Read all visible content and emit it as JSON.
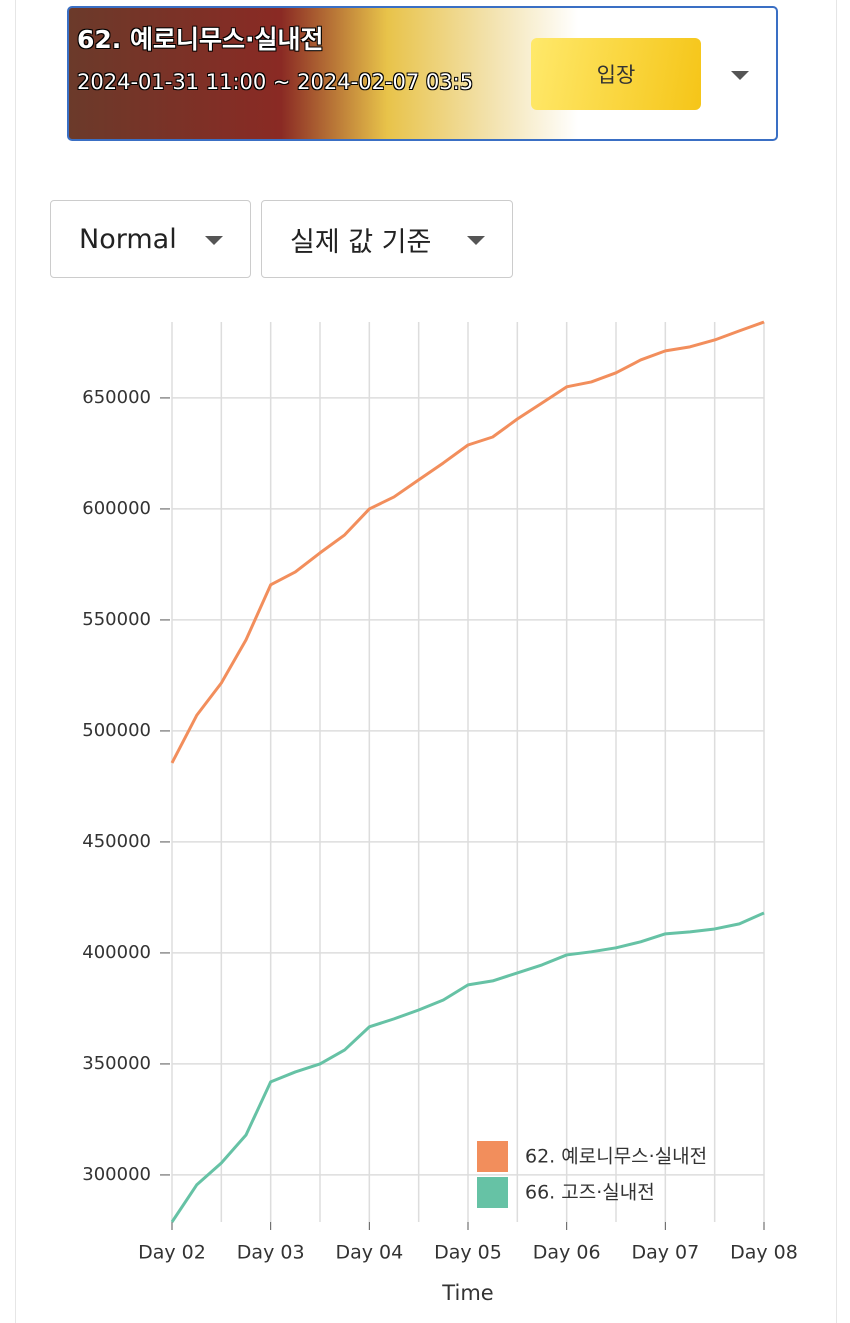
{
  "banner": {
    "title": "62. 예로니무스·실내전",
    "period": "2024-01-31 11:00 ~ 2024-02-07 03:5",
    "button": "입장"
  },
  "controls": {
    "mode": "Normal",
    "basis": "실제 값 기준"
  },
  "chart_data": {
    "type": "line",
    "x_label": "Time",
    "x": [
      2,
      2.25,
      2.5,
      2.75,
      3,
      3.25,
      3.5,
      3.75,
      4,
      4.25,
      4.5,
      4.75,
      5,
      5.25,
      5.5,
      5.75,
      6,
      6.25,
      6.5,
      6.75,
      7,
      7.25,
      7.5,
      7.75,
      8
    ],
    "series": [
      {
        "name": "62. 예로니무스·실내전",
        "color": "#f28e5c",
        "values": [
          485600,
          507000,
          521600,
          541000,
          565800,
          571600,
          580200,
          588300,
          600000,
          605400,
          613100,
          620700,
          628800,
          632400,
          640500,
          647700,
          655000,
          657200,
          661300,
          667100,
          671200,
          673000,
          676100,
          680200,
          684200
        ]
      },
      {
        "name": "66. 고즈·실내전",
        "color": "#66c2a5",
        "values": [
          278800,
          295500,
          305400,
          318000,
          341900,
          346400,
          350000,
          356300,
          366700,
          370300,
          374300,
          378800,
          385600,
          387400,
          391000,
          394600,
          399100,
          400500,
          402300,
          405000,
          408600,
          409500,
          410800,
          413100,
          418000
        ]
      }
    ],
    "xlim": [
      2,
      8
    ],
    "xticks": [
      {
        "value": 2,
        "label": "Day 02"
      },
      {
        "value": 3,
        "label": "Day 03"
      },
      {
        "value": 4,
        "label": "Day 04"
      },
      {
        "value": 5,
        "label": "Day 05"
      },
      {
        "value": 6,
        "label": "Day 06"
      },
      {
        "value": 7,
        "label": "Day 07"
      },
      {
        "value": 8,
        "label": "Day 08"
      }
    ],
    "xgrid": [
      2,
      2.5,
      3,
      3.5,
      4,
      4.5,
      5,
      5.5,
      6,
      6.5,
      7,
      7.5,
      8
    ],
    "ylim": [
      278800,
      684200
    ],
    "yticks": [
      300000,
      350000,
      400000,
      450000,
      500000,
      550000,
      600000,
      650000
    ],
    "grid": true,
    "legend": "bottom-right"
  }
}
